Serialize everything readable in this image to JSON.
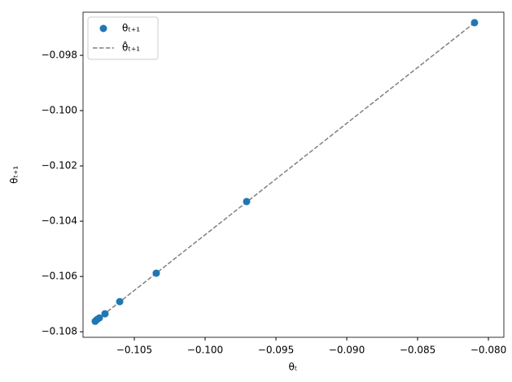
{
  "chart_data": {
    "type": "scatter",
    "xlabel": "θₜ",
    "ylabel": "θₜ₊₁",
    "x": [
      -0.08098,
      -0.09707,
      -0.10345,
      -0.10603,
      -0.10707,
      -0.10747,
      -0.10764,
      -0.10776
    ],
    "series": [
      {
        "name": "θₜ₊₁",
        "color": "#1f77b4",
        "mode": "markers",
        "values": [
          -0.09682,
          -0.10329,
          -0.10588,
          -0.10691,
          -0.10735,
          -0.1075,
          -0.10756,
          -0.10762
        ]
      },
      {
        "name": "θ̂ₜ₊₁",
        "color": "#808080",
        "mode": "dashed-line",
        "values": [
          -0.09682,
          -0.10331,
          -0.10588,
          -0.10692,
          -0.10734,
          -0.1075,
          -0.10757,
          -0.10762
        ]
      }
    ],
    "xlim": [
      -0.10862,
      -0.07891
    ],
    "ylim": [
      -0.1082,
      -0.09644
    ],
    "xticks": [
      {
        "value": -0.105,
        "label": "−0.105"
      },
      {
        "value": -0.1,
        "label": "−0.100"
      },
      {
        "value": -0.095,
        "label": "−0.095"
      },
      {
        "value": -0.09,
        "label": "−0.090"
      },
      {
        "value": -0.085,
        "label": "−0.085"
      },
      {
        "value": -0.08,
        "label": "−0.080"
      }
    ],
    "yticks": [
      {
        "value": -0.108,
        "label": "−0.108"
      },
      {
        "value": -0.106,
        "label": "−0.106"
      },
      {
        "value": -0.104,
        "label": "−0.104"
      },
      {
        "value": -0.102,
        "label": "−0.102"
      },
      {
        "value": -0.1,
        "label": "−0.100"
      },
      {
        "value": -0.098,
        "label": "−0.098"
      }
    ],
    "legend": "upper left",
    "grid": false
  }
}
